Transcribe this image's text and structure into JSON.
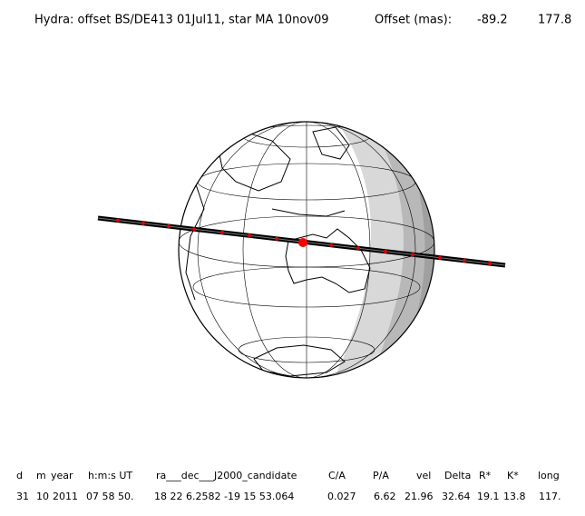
{
  "header": {
    "title": "Hydra: offset BS/DE413 01Jul11, star MA 10nov09",
    "offset_label": "Offset (mas):",
    "offset_values": [
      "-89.2",
      "177.8"
    ]
  },
  "table": {
    "columns": [
      "d",
      "m",
      "year",
      "h:m:s UT",
      "ra___dec___J2000_candidate",
      "C/A",
      "P/A",
      "vel",
      "Delta",
      "R*",
      "K*",
      "long"
    ],
    "rows": [
      [
        "31",
        "10",
        "2011",
        "07 58 50.",
        "18 22  6.2582 -19 15  53.064",
        "0.027",
        "6.62",
        "21.96",
        "32.64",
        "19.1",
        "13.8",
        "117."
      ]
    ]
  }
}
